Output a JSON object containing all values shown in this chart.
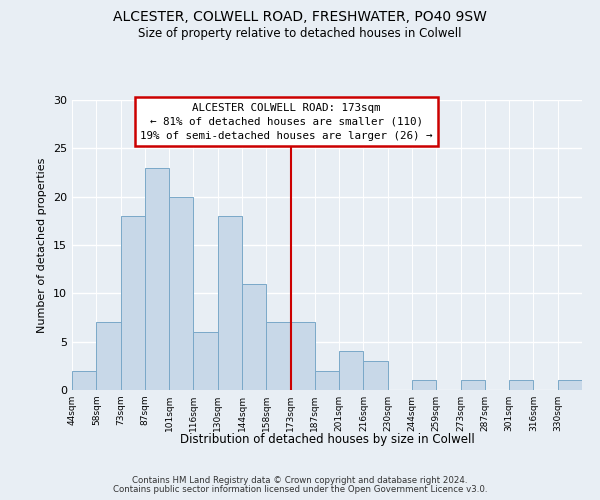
{
  "title": "ALCESTER, COLWELL ROAD, FRESHWATER, PO40 9SW",
  "subtitle": "Size of property relative to detached houses in Colwell",
  "xlabel": "Distribution of detached houses by size in Colwell",
  "ylabel": "Number of detached properties",
  "bin_labels": [
    "44sqm",
    "58sqm",
    "73sqm",
    "87sqm",
    "101sqm",
    "116sqm",
    "130sqm",
    "144sqm",
    "158sqm",
    "173sqm",
    "187sqm",
    "201sqm",
    "216sqm",
    "230sqm",
    "244sqm",
    "259sqm",
    "273sqm",
    "287sqm",
    "301sqm",
    "316sqm",
    "330sqm"
  ],
  "bin_values": [
    2,
    7,
    18,
    23,
    20,
    6,
    18,
    11,
    7,
    7,
    2,
    4,
    3,
    0,
    1,
    0,
    1,
    0,
    1,
    0,
    1
  ],
  "bar_color": "#c8d8e8",
  "bar_edge_color": "#7aa8c8",
  "vline_x": 9,
  "vline_color": "#cc0000",
  "annotation_title": "ALCESTER COLWELL ROAD: 173sqm",
  "annotation_line1": "← 81% of detached houses are smaller (110)",
  "annotation_line2": "19% of semi-detached houses are larger (26) →",
  "annotation_box_color": "#ffffff",
  "annotation_box_edge": "#cc0000",
  "ylim": [
    0,
    30
  ],
  "yticks": [
    0,
    5,
    10,
    15,
    20,
    25,
    30
  ],
  "background_color": "#e8eef4",
  "grid_color": "#ffffff",
  "footer1": "Contains HM Land Registry data © Crown copyright and database right 2024.",
  "footer2": "Contains public sector information licensed under the Open Government Licence v3.0."
}
